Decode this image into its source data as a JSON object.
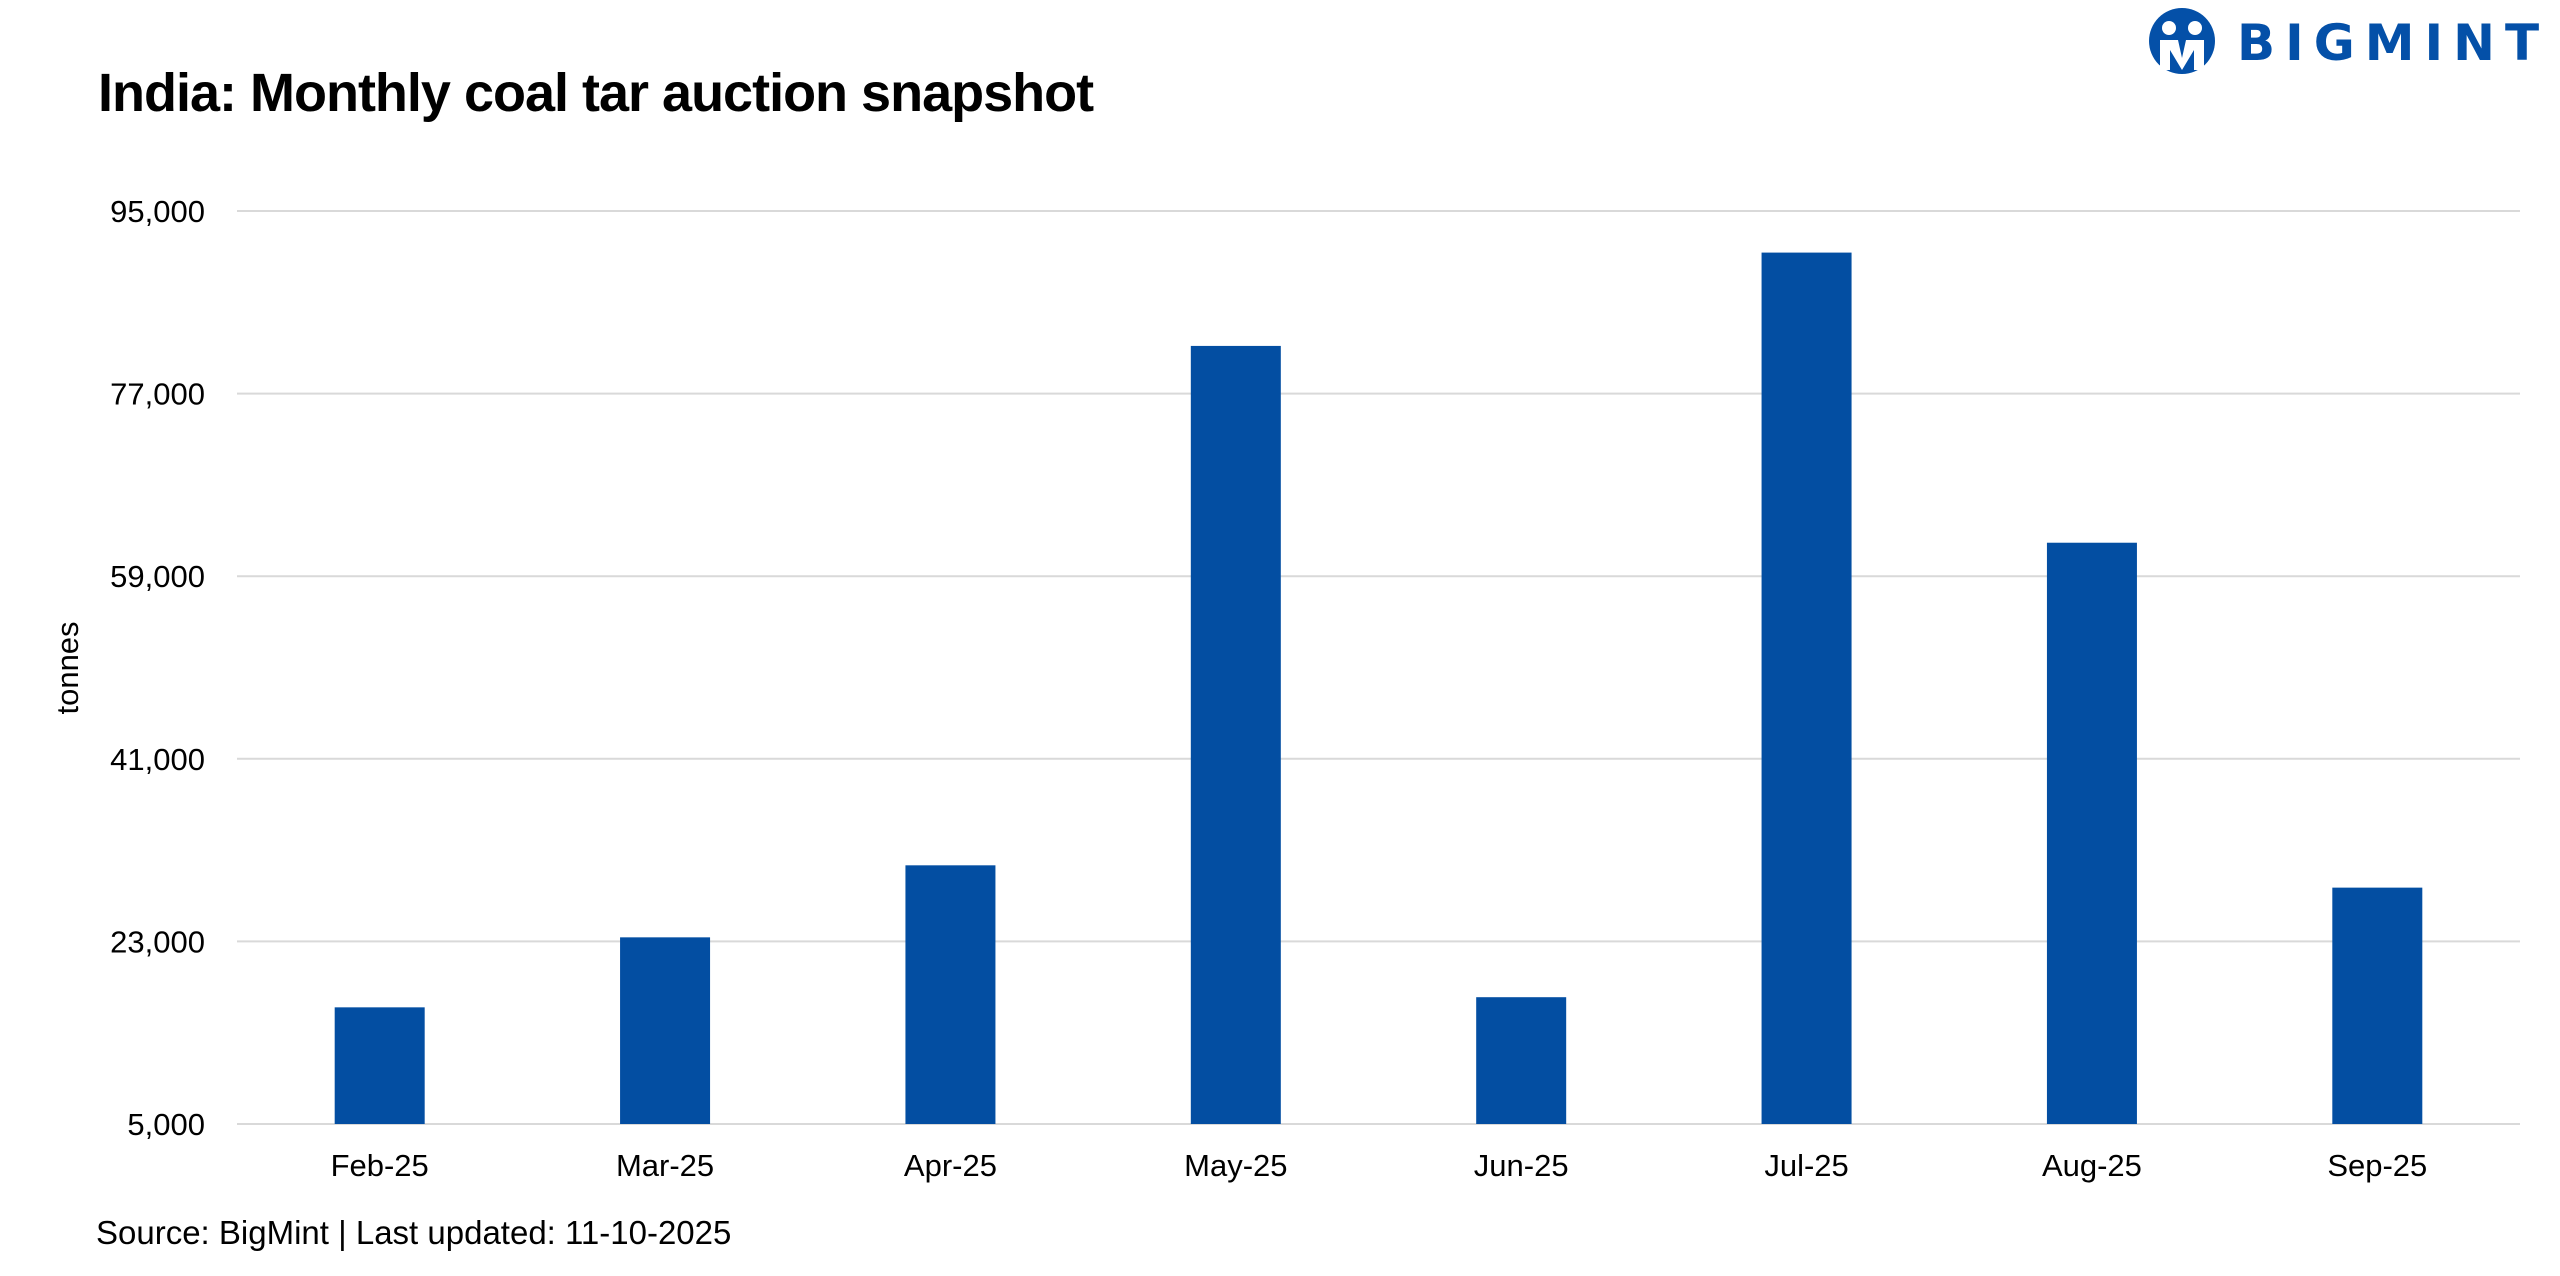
{
  "brand": {
    "name": "BIGMINT",
    "color": "#0450a8"
  },
  "title": "India: Monthly coal tar auction snapshot",
  "source": "Source: BigMint | Last updated: 11-10-2025",
  "chart_data": {
    "type": "bar",
    "title": "India: Monthly coal tar auction snapshot",
    "xlabel": "",
    "ylabel": "tonnes",
    "categories": [
      "Feb-25",
      "Mar-25",
      "Apr-25",
      "May-25",
      "Jun-25",
      "Jul-25",
      "Aug-25",
      "Sep-25"
    ],
    "values": [
      16500,
      23400,
      30500,
      81700,
      17500,
      90900,
      62300,
      28300
    ],
    "ylim": [
      5000,
      95000
    ],
    "yticks": [
      5000,
      23000,
      41000,
      59000,
      77000,
      95000
    ],
    "ytick_labels": [
      "5,000",
      "23,000",
      "41,000",
      "59,000",
      "77,000",
      "95,000"
    ],
    "grid": true,
    "legend": "none",
    "bar_color": "#034ea2",
    "grid_color": "#d9d9d9"
  }
}
